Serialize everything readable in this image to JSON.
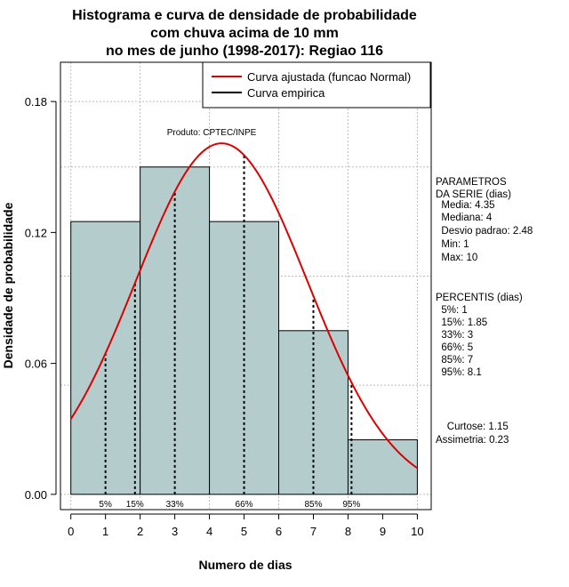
{
  "chart_data": {
    "type": "bar",
    "title": [
      "Histograma e curva de densidade de probabilidade",
      "com chuva acima de 10 mm",
      "no mes de junho (1998-2017): Regiao 116"
    ],
    "xlabel": "Numero de dias",
    "ylabel": "Densidade de probabilidade",
    "xlim": [
      -0.3,
      10.4
    ],
    "ylim": [
      -0.007,
      0.198
    ],
    "x_ticks": [
      0,
      1,
      2,
      3,
      4,
      5,
      6,
      7,
      8,
      9,
      10
    ],
    "y_ticks": [
      0.0,
      0.06,
      0.12,
      0.18
    ],
    "y_tick_labels": [
      "0.00",
      "0.06",
      "0.12",
      "0.18"
    ],
    "grid": true,
    "grid_x": [
      0,
      2,
      4,
      6,
      8,
      10
    ],
    "grid_y": [
      0,
      0.05,
      0.1,
      0.15,
      0.18
    ],
    "histogram": {
      "bins": [
        [
          0,
          2
        ],
        [
          2,
          4
        ],
        [
          4,
          6
        ],
        [
          6,
          8
        ],
        [
          8,
          10
        ]
      ],
      "values": [
        0.125,
        0.15,
        0.125,
        0.075,
        0.025
      ],
      "fill": "#b5cccc",
      "edge": "#000000"
    },
    "normal_curve": {
      "name": "Curva ajustada (funcao Normal)",
      "color": "#dd0000",
      "mean": 4.35,
      "sd": 2.48,
      "x_range": [
        0,
        10
      ]
    },
    "percentile_markers": [
      {
        "label": "5%",
        "x": 1
      },
      {
        "label": "15%",
        "x": 1.85
      },
      {
        "label": "33%",
        "x": 3
      },
      {
        "label": "66%",
        "x": 5
      },
      {
        "label": "85%",
        "x": 7
      },
      {
        "label": "95%",
        "x": 8.1
      }
    ],
    "legend": {
      "position": "top-right",
      "entries": [
        {
          "label": "Curva ajustada (funcao Normal)",
          "color": "#dd0000"
        },
        {
          "label": "Curva empirica",
          "color": "#000000"
        }
      ]
    },
    "annotations": {
      "credit": "Produto: CPTEC/INPE",
      "parameters": [
        "PARAMETROS",
        "DA SERIE (dias)",
        "  Media: 4.35",
        "  Mediana: 4",
        "  Desvio padrao: 2.48",
        "  Min: 1",
        "  Max: 10"
      ],
      "percentiles": [
        "PERCENTIS (dias)",
        "  5%: 1",
        "  15%: 1.85",
        "  33%: 3",
        "  66%: 5",
        "  85%: 7",
        "  95%: 8.1"
      ],
      "shape": [
        "    Curtose: 1.15",
        "Assimetria: 0.23"
      ]
    }
  }
}
